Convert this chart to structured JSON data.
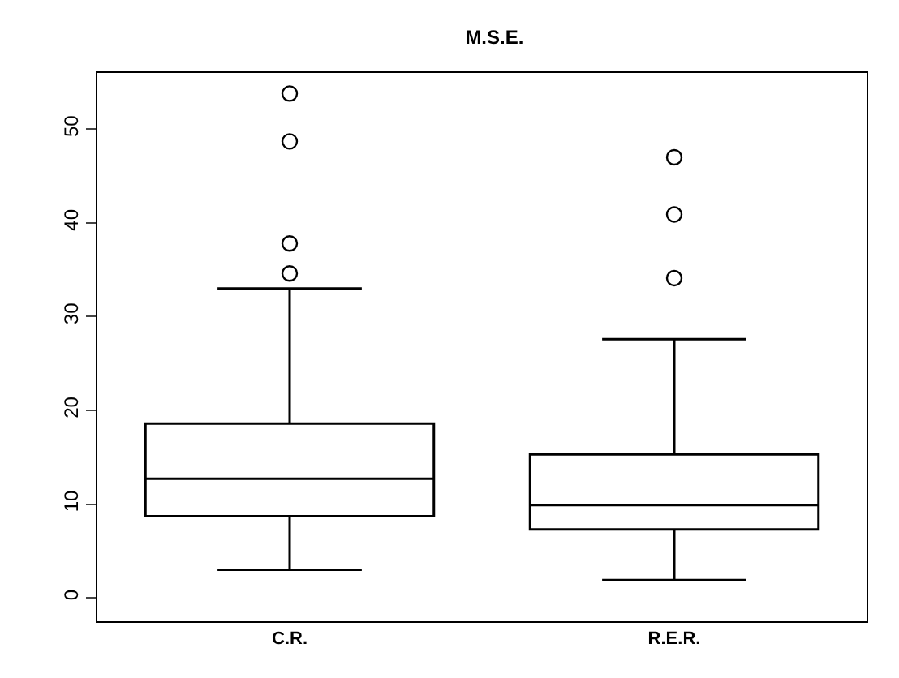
{
  "chart_data": {
    "type": "box",
    "title": "M.S.E.",
    "categories": [
      "C.R.",
      "R.E.R."
    ],
    "boxes": [
      {
        "low": 3,
        "q1": 8.7,
        "median": 12.7,
        "q3": 18.6,
        "high": 33,
        "outliers": [
          34.6,
          37.8,
          48.7,
          53.8
        ]
      },
      {
        "low": 1.9,
        "q1": 7.3,
        "median": 9.9,
        "q3": 15.3,
        "high": 27.6,
        "outliers": [
          34.1,
          40.9,
          47
        ]
      }
    ],
    "ylim": [
      -2.5,
      56
    ],
    "yticks": [
      0,
      10,
      20,
      30,
      40,
      50
    ],
    "grid": false
  }
}
